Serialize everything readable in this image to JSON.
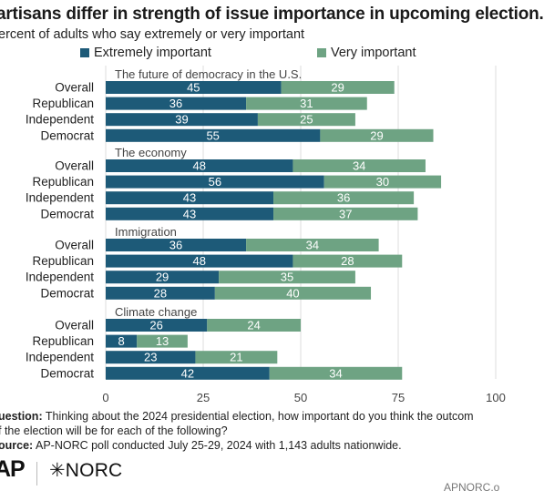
{
  "header": {
    "title": "artisans differ in strength of issue importance in upcoming election.",
    "subtitle": "ercent of adults who say extremely or very important"
  },
  "legend": {
    "items": [
      {
        "label": "Extremely important",
        "color": "#1d5a78"
      },
      {
        "label": "Very important",
        "color": "#6ea383"
      }
    ]
  },
  "chart_data": {
    "type": "bar",
    "orientation": "horizontal",
    "stacked": true,
    "xlim": [
      0,
      100
    ],
    "x_ticks": [
      "0",
      "25",
      "50",
      "75",
      "100"
    ],
    "grid": true,
    "legend_position": "top",
    "series_colors": {
      "extremely": "#1d5a78",
      "very": "#6ea383"
    },
    "groups": [
      {
        "name": "The future of democracy in the U.S.",
        "rows": [
          {
            "label": "Overall",
            "extremely": 45,
            "very": 29
          },
          {
            "label": "Republican",
            "extremely": 36,
            "very": 31
          },
          {
            "label": "Independent",
            "extremely": 39,
            "very": 25
          },
          {
            "label": "Democrat",
            "extremely": 55,
            "very": 29
          }
        ]
      },
      {
        "name": "The economy",
        "rows": [
          {
            "label": "Overall",
            "extremely": 48,
            "very": 34
          },
          {
            "label": "Republican",
            "extremely": 56,
            "very": 30
          },
          {
            "label": "Independent",
            "extremely": 43,
            "very": 36
          },
          {
            "label": "Democrat",
            "extremely": 43,
            "very": 37
          }
        ]
      },
      {
        "name": "Immigration",
        "rows": [
          {
            "label": "Overall",
            "extremely": 36,
            "very": 34
          },
          {
            "label": "Republican",
            "extremely": 48,
            "very": 28
          },
          {
            "label": "Independent",
            "extremely": 29,
            "very": 35
          },
          {
            "label": "Democrat",
            "extremely": 28,
            "very": 40
          }
        ]
      },
      {
        "name": "Climate change",
        "rows": [
          {
            "label": "Overall",
            "extremely": 26,
            "very": 24
          },
          {
            "label": "Republican",
            "extremely": 8,
            "very": 13
          },
          {
            "label": "Independent",
            "extremely": 23,
            "very": 21
          },
          {
            "label": "Democrat",
            "extremely": 42,
            "very": 34
          }
        ]
      }
    ]
  },
  "footer": {
    "question_label": "uestion:",
    "question_text": " Thinking about the 2024 presidential election, how important do you think the outcom",
    "question_text_2": "f the election will be for each of the following?",
    "source_label": "ource:",
    "source_text": " AP-NORC poll conducted July 25-29, 2024 with 1,143 adults nationwide.",
    "logo_ap": "AP",
    "logo_norc": "✳NORC",
    "credit": "APNORC.o"
  }
}
